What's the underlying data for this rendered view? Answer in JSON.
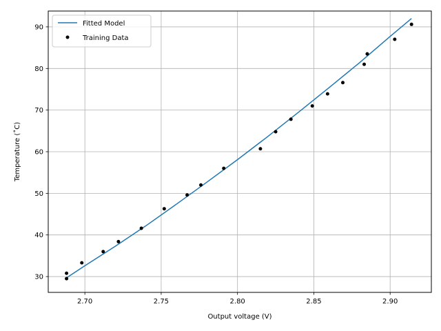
{
  "chart_data": {
    "type": "scatter",
    "title": "",
    "xlabel": "Output voltage (V)",
    "ylabel": "Temperature (˚C)",
    "xlim": [
      2.676,
      2.927
    ],
    "ylim": [
      26.2,
      93.8
    ],
    "xticks": [
      2.7,
      2.75,
      2.8,
      2.85,
      2.9
    ],
    "xtick_labels": [
      "2.70",
      "2.75",
      "2.80",
      "2.85",
      "2.90"
    ],
    "yticks": [
      30,
      40,
      50,
      60,
      70,
      80,
      90
    ],
    "ytick_labels": [
      "30",
      "40",
      "50",
      "60",
      "70",
      "80",
      "90"
    ],
    "grid": true,
    "legend_position": "top-left",
    "series": [
      {
        "name": "Fitted Model",
        "kind": "line",
        "color": "#1f77b4",
        "x": [
          2.688,
          2.7,
          2.72,
          2.74,
          2.76,
          2.78,
          2.8,
          2.82,
          2.84,
          2.86,
          2.88,
          2.9,
          2.914
        ],
        "y": [
          29.7,
          32.6,
          37.3,
          42.2,
          47.4,
          52.7,
          58.1,
          63.7,
          69.5,
          75.4,
          81.4,
          87.7,
          92.0
        ]
      },
      {
        "name": "Training Data",
        "kind": "scatter",
        "color": "#000000",
        "x": [
          2.688,
          2.688,
          2.698,
          2.712,
          2.722,
          2.737,
          2.752,
          2.767,
          2.776,
          2.791,
          2.815,
          2.825,
          2.835,
          2.849,
          2.859,
          2.869,
          2.883,
          2.885,
          2.903,
          2.914
        ],
        "y": [
          29.5,
          30.8,
          33.3,
          36.0,
          38.4,
          41.6,
          46.3,
          49.6,
          52.0,
          56.0,
          60.7,
          64.8,
          67.8,
          71.0,
          73.9,
          76.6,
          81.0,
          83.5,
          87.0,
          90.6
        ]
      }
    ]
  }
}
